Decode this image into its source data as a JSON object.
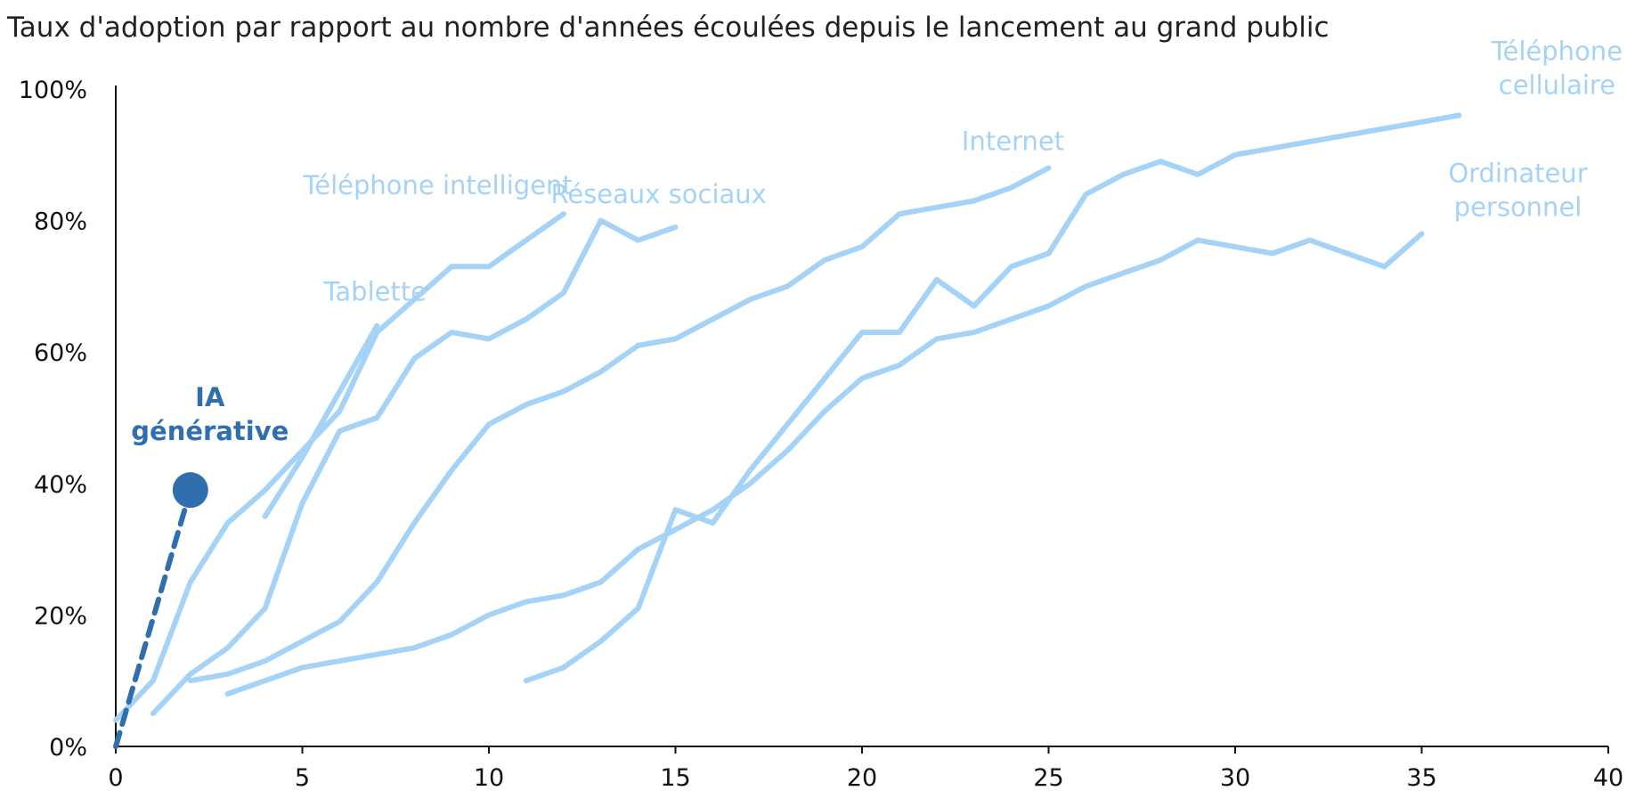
{
  "chart_data": {
    "type": "line",
    "title": "",
    "subtitle": "Taux d'adoption par rapport au nombre d'années écoulées depuis le lancement au grand public",
    "xlabel": "",
    "ylabel": "",
    "xlim": [
      0,
      40
    ],
    "ylim": [
      0,
      100
    ],
    "x_ticks": [
      0,
      5,
      10,
      15,
      20,
      25,
      30,
      35,
      40
    ],
    "x_tick_labels": [
      "0",
      "5",
      "10",
      "15",
      "20",
      "25",
      "30",
      "35",
      "40"
    ],
    "y_ticks": [
      0,
      20,
      40,
      60,
      80,
      100
    ],
    "y_tick_labels": [
      "0%",
      "20%",
      "40%",
      "60%",
      "80%",
      "100%"
    ],
    "grid": false,
    "legend": "none (series labeled directly on the chart)",
    "colors": {
      "series": "#a4d3f7",
      "highlight": "#2f6fad",
      "axis": "#111111",
      "text": "#222222"
    },
    "series": [
      {
        "name": "Téléphone intelligent",
        "label_lines": [
          "Téléphone intelligent"
        ],
        "label_pos": "upper-left of line end",
        "x": [
          0,
          1,
          2,
          3,
          4,
          5,
          6,
          7,
          8,
          9,
          10,
          11,
          12
        ],
        "y": [
          4,
          10,
          25,
          34,
          39,
          45,
          51,
          63,
          68,
          73,
          73,
          77,
          81
        ]
      },
      {
        "name": "Tablette",
        "label_lines": [
          "Tablette"
        ],
        "label_pos": "above line end",
        "x": [
          4,
          5,
          6,
          7
        ],
        "y": [
          35,
          44,
          54,
          64
        ]
      },
      {
        "name": "Réseaux sociaux",
        "label_lines": [
          "Réseaux sociaux"
        ],
        "label_pos": "upper-right of line end",
        "x": [
          1,
          2,
          3,
          4,
          5,
          6,
          7,
          8,
          9,
          10,
          11,
          12,
          13,
          14,
          15
        ],
        "y": [
          5,
          11,
          15,
          21,
          37,
          48,
          50,
          59,
          63,
          62,
          65,
          69,
          80,
          77,
          79
        ]
      },
      {
        "name": "Internet",
        "label_lines": [
          "Internet"
        ],
        "label_pos": "above line end",
        "x": [
          2,
          3,
          4,
          5,
          6,
          7,
          8,
          9,
          10,
          11,
          12,
          13,
          14,
          15,
          16,
          17,
          18,
          19,
          20,
          21,
          22,
          23,
          24,
          25
        ],
        "y": [
          10,
          11,
          13,
          16,
          19,
          25,
          34,
          42,
          49,
          52,
          54,
          57,
          61,
          62,
          65,
          68,
          70,
          74,
          76,
          81,
          82,
          83,
          85,
          88
        ]
      },
      {
        "name": "Téléphone cellulaire",
        "label_lines": [
          "Téléphone",
          "cellulaire"
        ],
        "label_pos": "right of line end",
        "x": [
          11,
          12,
          13,
          14,
          15,
          16,
          17,
          18,
          19,
          20,
          21,
          22,
          23,
          24,
          25,
          26,
          27,
          28,
          29,
          30,
          31,
          32,
          33,
          34,
          35,
          36
        ],
        "y": [
          10,
          12,
          16,
          21,
          36,
          34,
          42,
          49,
          56,
          63,
          63,
          71,
          67,
          73,
          75,
          84,
          87,
          89,
          87,
          90,
          91,
          92,
          93,
          94,
          95,
          96
        ]
      },
      {
        "name": "Ordinateur personnel",
        "label_lines": [
          "Ordinateur",
          "personnel"
        ],
        "label_pos": "right of line end",
        "x": [
          3,
          4,
          5,
          6,
          7,
          8,
          9,
          10,
          11,
          12,
          13,
          14,
          15,
          16,
          17,
          18,
          19,
          20,
          21,
          22,
          23,
          24,
          25,
          26,
          27,
          28,
          29,
          30,
          31,
          32,
          33,
          34,
          35
        ],
        "y": [
          8,
          10,
          12,
          13,
          14,
          15,
          17,
          20,
          22,
          23,
          25,
          30,
          33,
          36,
          40,
          45,
          51,
          56,
          58,
          62,
          63,
          65,
          67,
          70,
          72,
          74,
          77,
          76,
          75,
          77,
          75,
          73,
          78
        ]
      },
      {
        "name": "IA générative",
        "label_lines": [
          "IA",
          "générative"
        ],
        "label_pos": "above end marker",
        "highlight": true,
        "dashed": true,
        "end_marker": true,
        "x": [
          0,
          2
        ],
        "y": [
          0,
          39
        ]
      }
    ]
  }
}
